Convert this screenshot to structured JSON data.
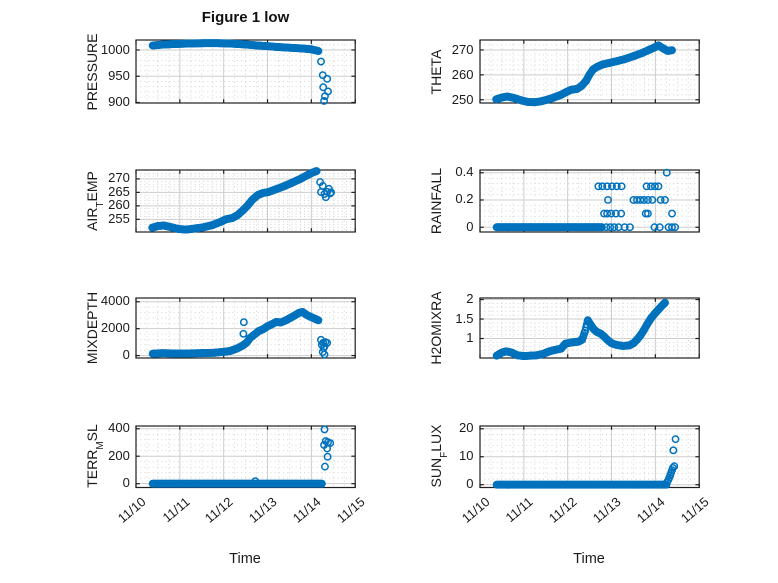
{
  "figure": {
    "background": "#ffffff",
    "text_color": "#1a1a1a"
  },
  "chart_data": {
    "type": "scatter",
    "title": "Figure 1 low",
    "xlabel": "Time",
    "marker": {
      "shape": "open-circle",
      "color": "#0072BD"
    },
    "grid": {
      "major": true,
      "minor": "dotted"
    },
    "layout": {
      "rows": 4,
      "cols": 2
    },
    "x_axis": {
      "tick_labels": [
        "11/10",
        "11/11",
        "11/12",
        "11/13",
        "11/14",
        "11/15"
      ],
      "tick_values": [
        0,
        1,
        2,
        3,
        4,
        5
      ],
      "lim": [
        0,
        5
      ],
      "unit": "month/day"
    },
    "panels": [
      {
        "name": "PRESSURE",
        "row": 0,
        "col": 0,
        "ylabel": {
          "pre": "PRESSURE",
          "sub": "",
          "post": ""
        },
        "yticks": [
          900,
          950,
          1000
        ],
        "ylim": [
          899,
          1019
        ],
        "dense": [
          [
            0.38,
            1008.5
          ],
          [
            0.6,
            1010.2
          ],
          [
            0.9,
            1011.4
          ],
          [
            1.2,
            1012.2
          ],
          [
            1.5,
            1012.8
          ],
          [
            1.8,
            1013
          ],
          [
            2.1,
            1012.4
          ],
          [
            2.4,
            1011
          ],
          [
            2.6,
            1009.8
          ],
          [
            2.8,
            1008.3
          ],
          [
            3.0,
            1007.3
          ],
          [
            3.2,
            1005.8
          ],
          [
            3.5,
            1004.3
          ],
          [
            3.8,
            1002.8
          ],
          [
            4.0,
            1001.2
          ],
          [
            4.16,
            998
          ]
        ],
        "scatter": [
          [
            4.22,
            978
          ],
          [
            4.26,
            952
          ],
          [
            4.36,
            945
          ],
          [
            4.27,
            929
          ],
          [
            4.38,
            921
          ],
          [
            4.31,
            912
          ],
          [
            4.29,
            903
          ]
        ]
      },
      {
        "name": "THETA",
        "row": 0,
        "col": 1,
        "ylabel": {
          "pre": "THETA",
          "sub": "",
          "post": ""
        },
        "yticks": [
          250,
          260,
          270
        ],
        "ylim": [
          248.7,
          274
        ],
        "dense": [
          [
            0.37,
            250.2
          ],
          [
            0.5,
            250.9
          ],
          [
            0.62,
            251.3
          ],
          [
            0.78,
            250.7
          ],
          [
            0.95,
            249.7
          ],
          [
            1.1,
            249.1
          ],
          [
            1.25,
            249.0
          ],
          [
            1.4,
            249.4
          ],
          [
            1.55,
            250.1
          ],
          [
            1.7,
            251.0
          ],
          [
            1.85,
            252.0
          ],
          [
            1.98,
            253.2
          ],
          [
            2.08,
            254.0
          ],
          [
            2.22,
            254.4
          ],
          [
            2.32,
            255.6
          ],
          [
            2.42,
            257.6
          ],
          [
            2.5,
            260.2
          ],
          [
            2.58,
            262.2
          ],
          [
            2.68,
            263.3
          ],
          [
            2.8,
            264.2
          ],
          [
            2.95,
            264.8
          ],
          [
            3.1,
            265.4
          ],
          [
            3.3,
            266.3
          ],
          [
            3.5,
            267.5
          ],
          [
            3.7,
            268.8
          ],
          [
            3.85,
            270.0
          ],
          [
            3.98,
            271.0
          ],
          [
            4.07,
            271.8
          ],
          [
            4.18,
            270.6
          ],
          [
            4.28,
            269.6
          ],
          [
            4.38,
            269.9
          ]
        ],
        "scatter": []
      },
      {
        "name": "AIR_TEMP",
        "row": 1,
        "col": 0,
        "ylabel": {
          "pre": "AIR",
          "sub": "T",
          "post": "EMP"
        },
        "yticks": [
          255,
          260,
          265,
          270
        ],
        "ylim": [
          250.3,
          273.3
        ],
        "dense": [
          [
            0.37,
            251.9
          ],
          [
            0.5,
            252.5
          ],
          [
            0.63,
            252.7
          ],
          [
            0.8,
            252.1
          ],
          [
            0.97,
            251.4
          ],
          [
            1.15,
            251.2
          ],
          [
            1.35,
            251.6
          ],
          [
            1.55,
            252.1
          ],
          [
            1.75,
            252.9
          ],
          [
            1.92,
            254.0
          ],
          [
            2.05,
            255.0
          ],
          [
            2.2,
            255.5
          ],
          [
            2.32,
            256.6
          ],
          [
            2.45,
            258.5
          ],
          [
            2.55,
            260.2
          ],
          [
            2.65,
            262.2
          ],
          [
            2.78,
            264.0
          ],
          [
            2.9,
            264.8
          ],
          [
            3.02,
            265.1
          ],
          [
            3.15,
            265.9
          ],
          [
            3.35,
            267.1
          ],
          [
            3.55,
            268.5
          ],
          [
            3.75,
            270.0
          ],
          [
            3.9,
            271.3
          ],
          [
            4.02,
            272.3
          ],
          [
            4.12,
            272.9
          ]
        ],
        "scatter": [
          [
            4.2,
            268.8
          ],
          [
            4.26,
            267.4
          ],
          [
            4.22,
            265.1
          ],
          [
            4.3,
            264.4
          ],
          [
            4.36,
            265.2
          ],
          [
            4.43,
            264.6
          ],
          [
            4.33,
            263.2
          ],
          [
            4.45,
            265.0
          ],
          [
            4.4,
            266.3
          ]
        ]
      },
      {
        "name": "RAINFALL",
        "row": 1,
        "col": 1,
        "ylabel": {
          "pre": "RAINFALL",
          "sub": "",
          "post": ""
        },
        "yticks": [
          0,
          0.2,
          0.4
        ],
        "ylim": [
          -0.035,
          0.42
        ],
        "dense": [
          [
            0.38,
            0
          ],
          [
            2.78,
            0
          ]
        ],
        "scatter": [
          [
            2.88,
            0
          ],
          [
            2.97,
            0
          ],
          [
            3.06,
            0
          ],
          [
            3.16,
            0
          ],
          [
            3.3,
            0
          ],
          [
            3.42,
            0
          ],
          [
            3.98,
            0
          ],
          [
            4.1,
            0
          ],
          [
            4.3,
            0
          ],
          [
            4.38,
            0
          ],
          [
            4.45,
            0
          ],
          [
            2.83,
            0.1
          ],
          [
            2.9,
            0.1
          ],
          [
            2.99,
            0.1
          ],
          [
            3.1,
            0.1
          ],
          [
            3.22,
            0.1
          ],
          [
            3.78,
            0.1
          ],
          [
            3.83,
            0.1
          ],
          [
            4.38,
            0.1
          ],
          [
            2.92,
            0.2
          ],
          [
            3.5,
            0.2
          ],
          [
            3.58,
            0.2
          ],
          [
            3.66,
            0.2
          ],
          [
            3.74,
            0.2
          ],
          [
            3.83,
            0.2
          ],
          [
            3.93,
            0.2
          ],
          [
            4.12,
            0.2
          ],
          [
            4.22,
            0.2
          ],
          [
            2.7,
            0.3
          ],
          [
            2.79,
            0.3
          ],
          [
            2.9,
            0.3
          ],
          [
            3.01,
            0.3
          ],
          [
            3.12,
            0.3
          ],
          [
            3.23,
            0.3
          ],
          [
            3.8,
            0.3
          ],
          [
            3.9,
            0.3
          ],
          [
            3.99,
            0.3
          ],
          [
            4.07,
            0.3
          ],
          [
            4.26,
            0.4
          ]
        ]
      },
      {
        "name": "MIXDEPTH",
        "row": 2,
        "col": 0,
        "ylabel": {
          "pre": "MIXDEPTH",
          "sub": "",
          "post": ""
        },
        "yticks": [
          0,
          2000,
          4000
        ],
        "ylim": [
          -180,
          4280
        ],
        "dense": [
          [
            0.38,
            140
          ],
          [
            0.6,
            180
          ],
          [
            0.85,
            160
          ],
          [
            1.1,
            150
          ],
          [
            1.35,
            170
          ],
          [
            1.6,
            190
          ],
          [
            1.8,
            210
          ],
          [
            2.0,
            280
          ],
          [
            2.15,
            340
          ],
          [
            2.3,
            520
          ],
          [
            2.42,
            720
          ],
          [
            2.52,
            950
          ],
          [
            2.6,
            1300
          ],
          [
            2.7,
            1560
          ],
          [
            2.8,
            1820
          ],
          [
            2.9,
            1960
          ],
          [
            3.0,
            2180
          ],
          [
            3.1,
            2330
          ],
          [
            3.2,
            2500
          ],
          [
            3.3,
            2460
          ],
          [
            3.42,
            2620
          ],
          [
            3.52,
            2800
          ],
          [
            3.62,
            2980
          ],
          [
            3.72,
            3180
          ],
          [
            3.8,
            3240
          ],
          [
            3.88,
            3050
          ],
          [
            3.98,
            2880
          ],
          [
            4.08,
            2740
          ],
          [
            4.16,
            2620
          ]
        ],
        "scatter": [
          [
            2.46,
            2480
          ],
          [
            2.45,
            1620
          ],
          [
            4.22,
            1170
          ],
          [
            4.27,
            950
          ],
          [
            4.24,
            800
          ],
          [
            4.32,
            1000
          ],
          [
            4.36,
            940
          ],
          [
            4.3,
            680
          ],
          [
            4.28,
            550
          ],
          [
            4.26,
            260
          ],
          [
            4.3,
            80
          ]
        ]
      },
      {
        "name": "H2OMIXRA",
        "row": 2,
        "col": 1,
        "ylabel": {
          "pre": "H2OMIXRA",
          "sub": "",
          "post": ""
        },
        "yticks": [
          1,
          1.5,
          2
        ],
        "ylim": [
          0.5,
          2.04
        ],
        "dense": [
          [
            0.38,
            0.56
          ],
          [
            0.5,
            0.64
          ],
          [
            0.6,
            0.67
          ],
          [
            0.72,
            0.64
          ],
          [
            0.85,
            0.57
          ],
          [
            1.0,
            0.55
          ],
          [
            1.15,
            0.56
          ],
          [
            1.3,
            0.57
          ],
          [
            1.45,
            0.61
          ],
          [
            1.58,
            0.67
          ],
          [
            1.72,
            0.71
          ],
          [
            1.85,
            0.74
          ],
          [
            1.95,
            0.87
          ],
          [
            2.1,
            0.9
          ],
          [
            2.25,
            0.92
          ],
          [
            2.33,
            0.97
          ],
          [
            2.4,
            1.2
          ],
          [
            2.46,
            1.47
          ],
          [
            2.52,
            1.36
          ],
          [
            2.6,
            1.23
          ],
          [
            2.68,
            1.16
          ],
          [
            2.76,
            1.12
          ],
          [
            2.84,
            1.04
          ],
          [
            2.92,
            0.95
          ],
          [
            3.0,
            0.88
          ],
          [
            3.1,
            0.84
          ],
          [
            3.25,
            0.81
          ],
          [
            3.4,
            0.82
          ],
          [
            3.5,
            0.88
          ],
          [
            3.58,
            0.97
          ],
          [
            3.66,
            1.08
          ],
          [
            3.74,
            1.22
          ],
          [
            3.82,
            1.38
          ],
          [
            3.9,
            1.52
          ],
          [
            3.98,
            1.63
          ],
          [
            4.06,
            1.73
          ],
          [
            4.14,
            1.83
          ],
          [
            4.22,
            1.92
          ]
        ],
        "scatter": []
      },
      {
        "name": "TERR_MSL",
        "row": 3,
        "col": 0,
        "ylabel": {
          "pre": "TERR",
          "sub": "M",
          "post": "SL"
        },
        "yticks": [
          0,
          200,
          400
        ],
        "ylim": [
          -28,
          420
        ],
        "dense": [
          [
            0.38,
            0
          ],
          [
            4.24,
            0
          ]
        ],
        "scatter": [
          [
            2.72,
            18
          ],
          [
            4.3,
            395
          ],
          [
            4.33,
            310
          ],
          [
            4.38,
            302
          ],
          [
            4.43,
            296
          ],
          [
            4.29,
            282
          ],
          [
            4.36,
            256
          ],
          [
            4.37,
            196
          ],
          [
            4.31,
            124
          ]
        ]
      },
      {
        "name": "SUN_FLUX",
        "row": 3,
        "col": 1,
        "ylabel": {
          "pre": "SUN",
          "sub": "F",
          "post": "LUX"
        },
        "yticks": [
          0,
          10,
          20
        ],
        "ylim": [
          -1,
          21
        ],
        "dense": [
          [
            0.38,
            0
          ],
          [
            4.25,
            0
          ]
        ],
        "scatter": [
          [
            4.27,
            1.0
          ],
          [
            4.3,
            1.8
          ],
          [
            4.32,
            2.6
          ],
          [
            4.34,
            3.4
          ],
          [
            4.36,
            4.3
          ],
          [
            4.38,
            5.2
          ],
          [
            4.4,
            6.0
          ],
          [
            4.43,
            6.6
          ],
          [
            4.41,
            12.3
          ],
          [
            4.46,
            16.3
          ]
        ]
      }
    ]
  }
}
